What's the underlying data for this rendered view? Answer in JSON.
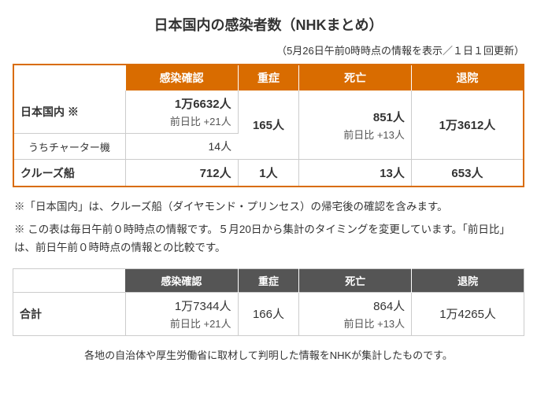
{
  "title": "日本国内の感染者数（NHKまとめ）",
  "subtitle": "（5月26日午前0時時点の情報を表示／１日１回更新）",
  "headers": {
    "confirmed": "感染確認",
    "severe": "重症",
    "deaths": "死亡",
    "discharged": "退院"
  },
  "rows": {
    "domestic": {
      "label": "日本国内 ※",
      "confirmed": "1万6632人",
      "confirmed_delta": "前日比 +21人",
      "severe": "165人",
      "deaths": "851人",
      "deaths_delta": "前日比 +13人",
      "discharged": "1万3612人"
    },
    "charter": {
      "label": "うちチャーター機",
      "confirmed": "14人"
    },
    "cruise": {
      "label": "クルーズ船",
      "confirmed": "712人",
      "severe": "1人",
      "deaths": "13人",
      "discharged": "653人"
    }
  },
  "notes": {
    "n1": "※「日本国内」は、クルーズ船（ダイヤモンド・プリンセス）の帰宅後の確認を含みます。",
    "n2": "※ この表は毎日午前０時時点の情報です。５月20日から集計のタイミングを変更しています。「前日比」は、前日午前０時時点の情報との比較です。"
  },
  "total": {
    "label": "合計",
    "confirmed": "1万7344人",
    "confirmed_delta": "前日比 +21人",
    "severe": "166人",
    "deaths": "864人",
    "deaths_delta": "前日比 +13人",
    "discharged": "1万4265人"
  },
  "footer": "各地の自治体や厚生労働省に取材して判明した情報をNHKが集計したものです。",
  "colors": {
    "primary": "#d96c00",
    "total_header": "#555555",
    "border": "#cccccc",
    "text": "#333333"
  }
}
